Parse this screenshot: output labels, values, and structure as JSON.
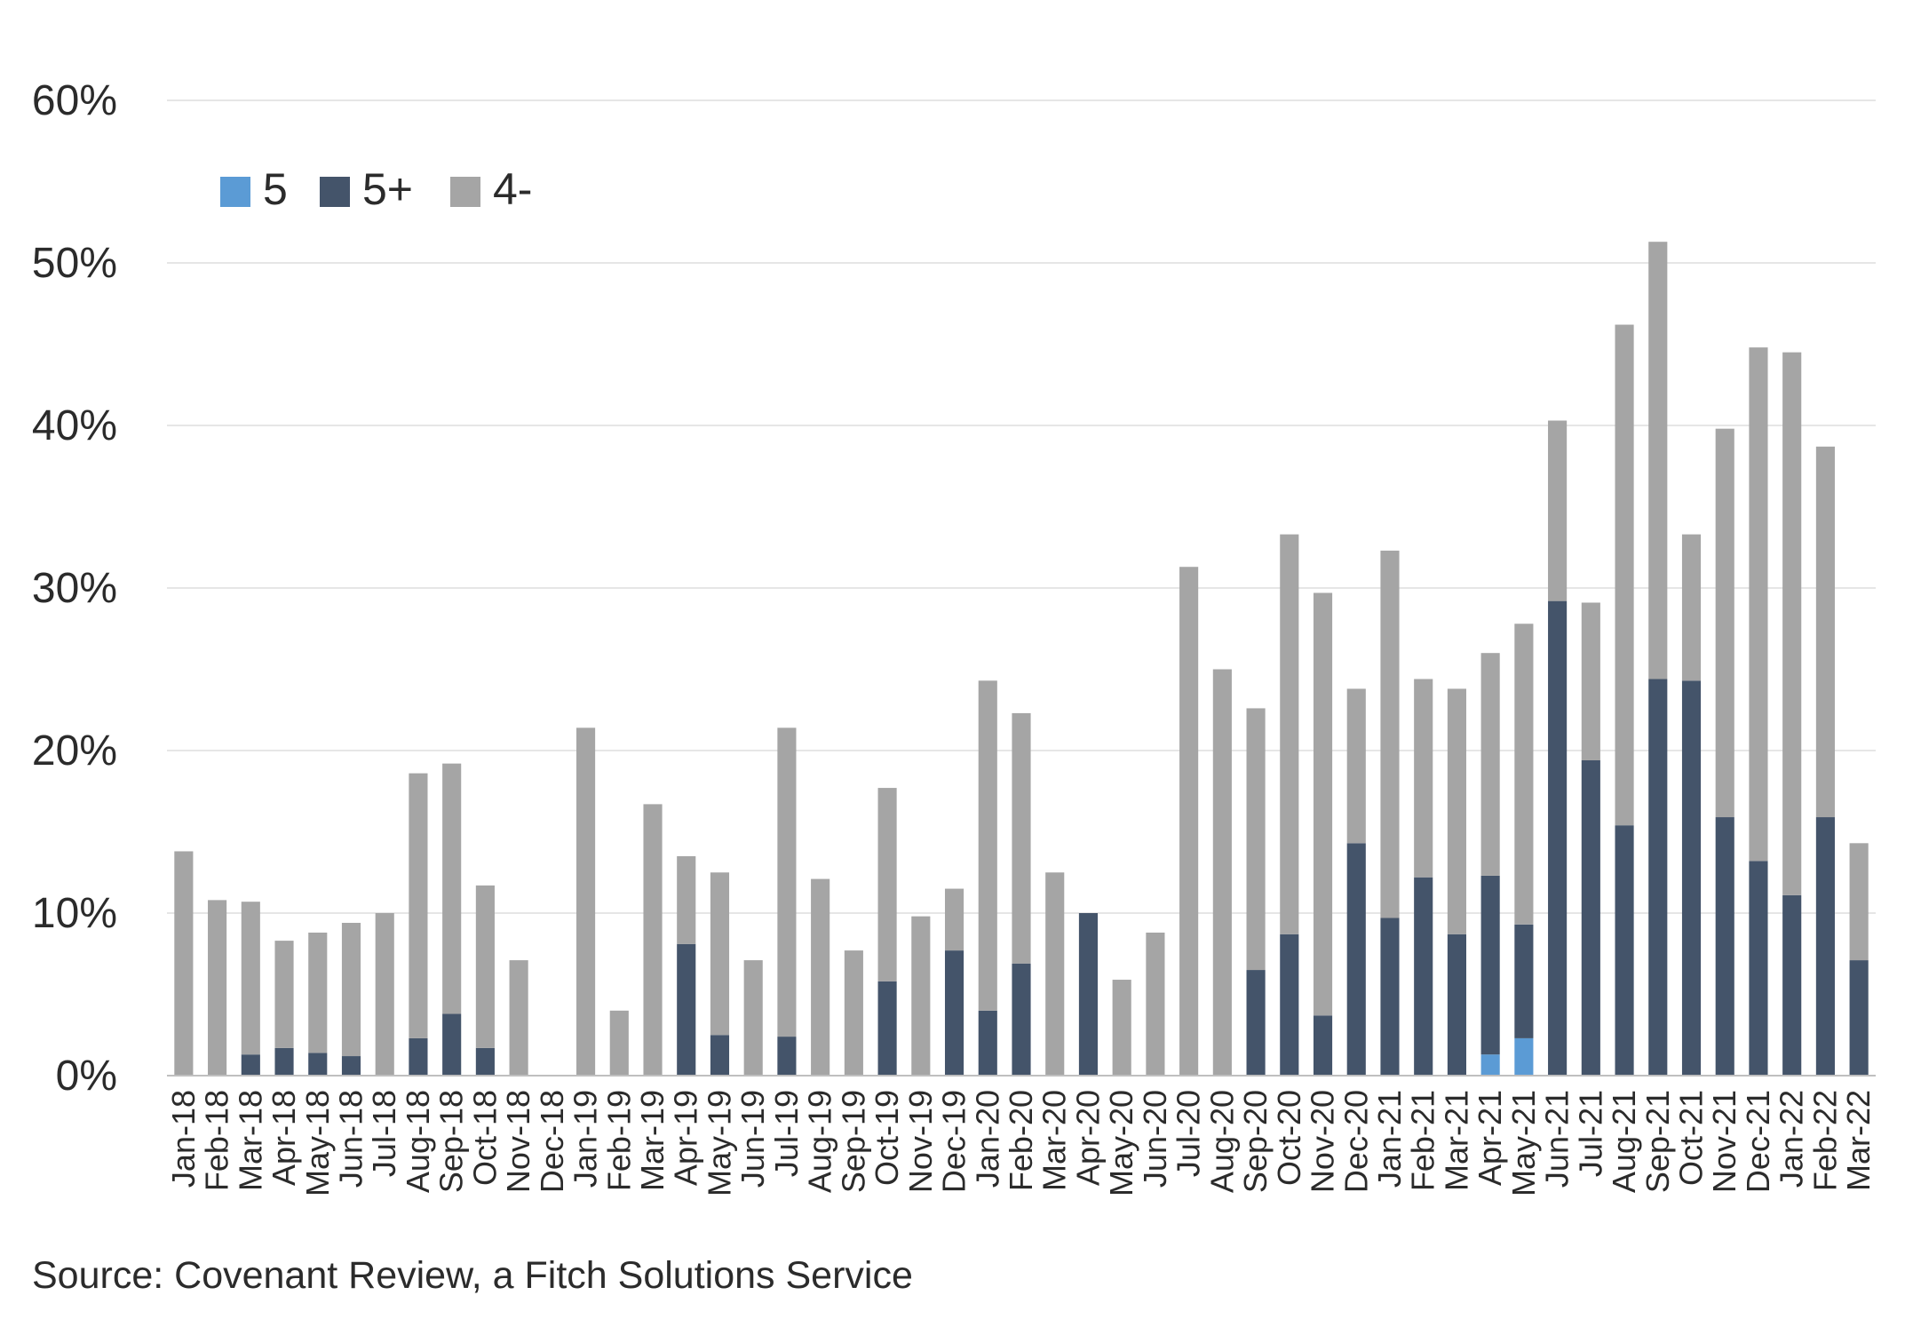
{
  "chart_data": {
    "type": "bar",
    "stacked": true,
    "categories": [
      "Jan-18",
      "Feb-18",
      "Mar-18",
      "Apr-18",
      "May-18",
      "Jun-18",
      "Jul-18",
      "Aug-18",
      "Sep-18",
      "Oct-18",
      "Nov-18",
      "Dec-18",
      "Jan-19",
      "Feb-19",
      "Mar-19",
      "Apr-19",
      "May-19",
      "Jun-19",
      "Jul-19",
      "Aug-19",
      "Sep-19",
      "Oct-19",
      "Nov-19",
      "Dec-19",
      "Jan-20",
      "Feb-20",
      "Mar-20",
      "Apr-20",
      "May-20",
      "Jun-20",
      "Jul-20",
      "Aug-20",
      "Sep-20",
      "Oct-20",
      "Nov-20",
      "Dec-20",
      "Jan-21",
      "Feb-21",
      "Mar-21",
      "Apr-21",
      "May-21",
      "Jun-21",
      "Jul-21",
      "Aug-21",
      "Sep-21",
      "Oct-21",
      "Nov-21",
      "Dec-21",
      "Jan-22",
      "Feb-22",
      "Mar-22"
    ],
    "series": [
      {
        "name": "5",
        "color": "#5b9bd5",
        "values": [
          0,
          0,
          0,
          0,
          0,
          0,
          0,
          0,
          0,
          0,
          0,
          0,
          0,
          0,
          0,
          0,
          0,
          0,
          0,
          0,
          0,
          0,
          0,
          0,
          0,
          0,
          0,
          0,
          0,
          0,
          0,
          0,
          0,
          0,
          0,
          0,
          0,
          0,
          0,
          1.3,
          2.3,
          0,
          0,
          0,
          0,
          0,
          0,
          0,
          0,
          0,
          0
        ]
      },
      {
        "name": "5+",
        "color": "#44546a",
        "values": [
          0,
          0,
          1.3,
          1.7,
          1.4,
          1.2,
          0,
          2.3,
          3.8,
          1.7,
          0,
          0,
          0,
          0,
          0,
          8.1,
          2.5,
          0,
          2.4,
          0,
          0,
          5.8,
          0,
          7.7,
          4.0,
          6.9,
          0,
          10.0,
          0,
          0,
          0,
          0,
          6.5,
          8.7,
          3.7,
          14.3,
          9.7,
          12.2,
          8.7,
          11.0,
          7.0,
          29.2,
          19.4,
          15.4,
          24.4,
          24.3,
          15.9,
          13.2,
          11.1,
          15.9,
          7.1
        ]
      },
      {
        "name": "4-",
        "color": "#a5a5a5",
        "values": [
          13.8,
          10.8,
          9.4,
          6.6,
          7.4,
          8.2,
          10.0,
          16.3,
          15.4,
          10.0,
          7.1,
          0,
          21.4,
          4.0,
          16.7,
          5.4,
          10.0,
          7.1,
          19.0,
          12.1,
          7.7,
          11.9,
          9.8,
          3.8,
          20.3,
          15.4,
          12.5,
          0,
          5.9,
          8.8,
          31.3,
          25.0,
          16.1,
          24.6,
          26.0,
          9.5,
          22.6,
          12.2,
          15.1,
          13.7,
          18.5,
          11.1,
          9.7,
          30.8,
          26.9,
          9.0,
          23.9,
          31.6,
          33.4,
          22.8,
          7.2
        ]
      }
    ],
    "legend": [
      "5",
      "5+",
      "4-"
    ],
    "legend_position": "top-left",
    "ylim": [
      0,
      60
    ],
    "yticks": [
      "0%",
      "10%",
      "20%",
      "30%",
      "40%",
      "50%",
      "60%"
    ],
    "ytick_values": [
      0,
      10,
      20,
      30,
      40,
      50,
      60
    ],
    "grid": true,
    "xlabel": "",
    "ylabel": ""
  },
  "source": "Source: Covenant Review, a Fitch Solutions Service"
}
